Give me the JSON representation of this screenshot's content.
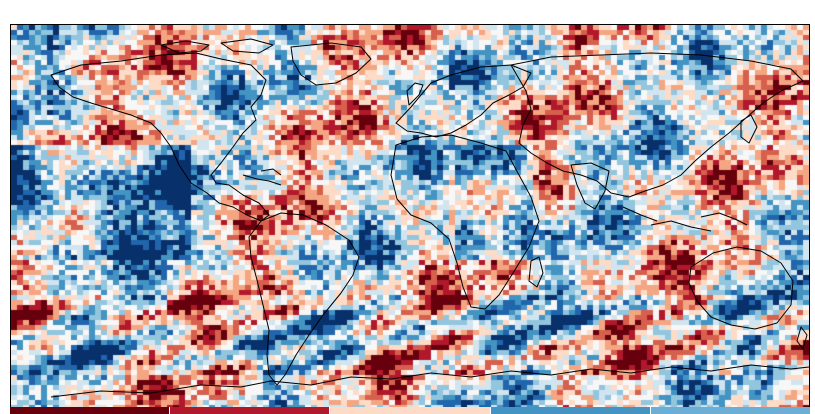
{
  "map": {
    "title": "",
    "colormap": {
      "name": "RdBu",
      "stops": [
        "#67000d",
        "#b2182b",
        "#d6604d",
        "#f4a582",
        "#fddbc7",
        "#f7f7f7",
        "#d1e5f0",
        "#92c5de",
        "#4393c3",
        "#2166ac",
        "#08306b"
      ]
    },
    "colorbar_segments": [
      "#67000d",
      "#b2182b",
      "#fddbc7",
      "#4393c3",
      "#6baed6"
    ],
    "background_color": "#08306b",
    "coastline_color": "#000000"
  }
}
